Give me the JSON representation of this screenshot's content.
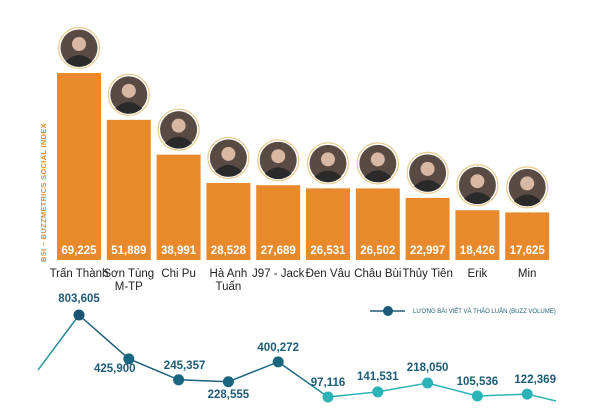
{
  "chart_data": [
    {
      "type": "bar",
      "ylabel": "BSI – BUZZMETRICS SOCIAL INDEX",
      "categories": [
        [
          "Trấn Thành"
        ],
        [
          "Sơn Tùng",
          "M-TP"
        ],
        [
          "Chi Pu"
        ],
        [
          "Hà Anh",
          "Tuấn"
        ],
        [
          "J97 - Jack"
        ],
        [
          "Đen Vâu"
        ],
        [
          "Châu Bùi"
        ],
        [
          "Thủy Tiên"
        ],
        [
          "Erik"
        ],
        [
          "Min"
        ]
      ],
      "values": [
        69225,
        51889,
        38991,
        28528,
        27689,
        26531,
        26502,
        22997,
        18426,
        17625
      ],
      "value_labels": [
        "69,225",
        "51,889",
        "38,991",
        "28,528",
        "27,689",
        "26,531",
        "26,502",
        "22,997",
        "18,426",
        "17,625"
      ],
      "bar_color": "#e8892b",
      "avatars": "circular portrait photo above each bar"
    },
    {
      "type": "line",
      "series": [
        {
          "name": "LƯỢNG BÀI VIẾT VÀ THẢO LUẬN (BUZZ VOLUME)",
          "values": [
            803605,
            425900,
            245357,
            228555,
            400272,
            97116,
            141531,
            218050,
            105536,
            122369
          ],
          "value_labels": [
            "803,605",
            "425,900",
            "245,357",
            "228,555",
            "400,272",
            "97,116",
            "141,531",
            "218,050",
            "105,536",
            "122,369"
          ]
        }
      ],
      "legend": "top-right",
      "color_high": "#1b5a78",
      "color_low": "#2bb3b8"
    }
  ]
}
